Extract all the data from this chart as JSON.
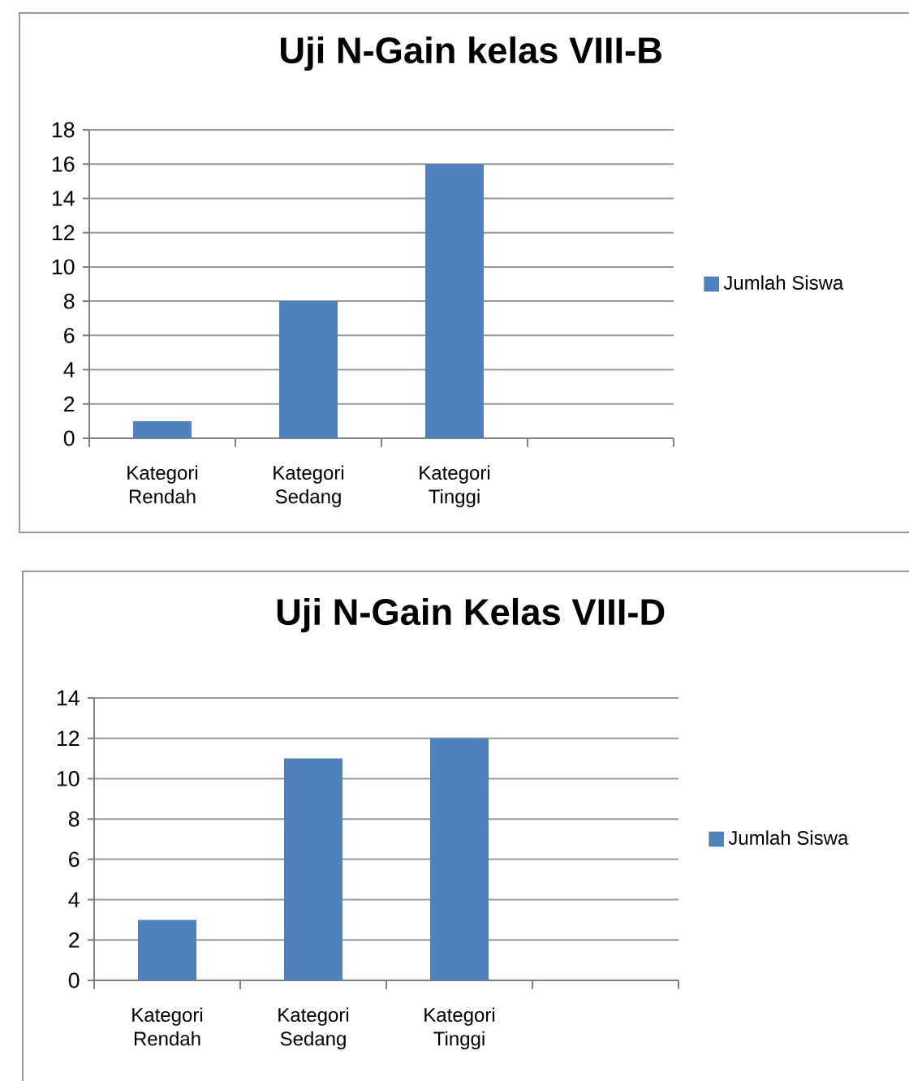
{
  "chart_data": [
    {
      "type": "bar",
      "title": "Uji N-Gain kelas VIII-B",
      "categories": [
        "Kategori Rendah",
        "Kategori Sedang",
        "Kategori Tinggi",
        null
      ],
      "series": [
        {
          "name": "Jumlah Siswa",
          "color": "#4f81bd",
          "values": [
            1,
            8,
            16,
            null
          ]
        }
      ],
      "ylim": [
        0,
        18
      ],
      "yticks": [
        0,
        2,
        4,
        6,
        8,
        10,
        12,
        14,
        16,
        18
      ],
      "grid": "y",
      "legend": "right"
    },
    {
      "type": "bar",
      "title": "Uji N-Gain Kelas VIII-D",
      "categories": [
        "Kategori Rendah",
        "Kategori Sedang",
        "Kategori Tinggi",
        null
      ],
      "series": [
        {
          "name": "Jumlah Siswa",
          "color": "#4f81bd",
          "values": [
            3,
            11,
            12,
            null
          ]
        }
      ],
      "ylim": [
        0,
        14
      ],
      "yticks": [
        0,
        2,
        4,
        6,
        8,
        10,
        12,
        14
      ],
      "grid": "y",
      "legend": "right"
    }
  ]
}
